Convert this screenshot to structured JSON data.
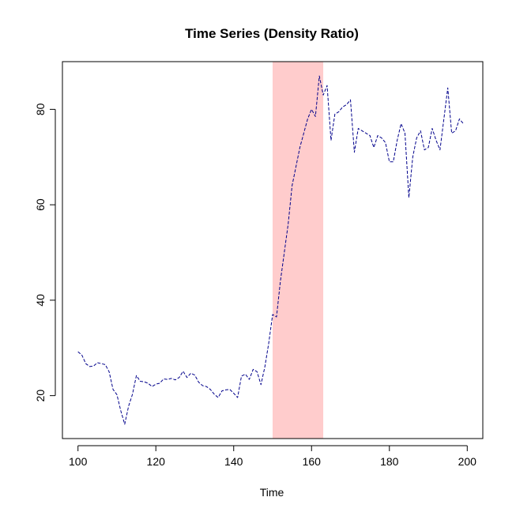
{
  "colors": {
    "background": "#ffffff",
    "series": "#00008b",
    "highlight": "#ffcccc",
    "axis": "#000000"
  },
  "chart_data": {
    "type": "line",
    "title": "Time Series (Density Ratio)",
    "xlabel": "Time",
    "ylabel": "",
    "xlim": [
      96,
      204
    ],
    "ylim": [
      11,
      90
    ],
    "x_ticks": [
      100,
      120,
      140,
      160,
      180,
      200
    ],
    "y_ticks": [
      20,
      40,
      60,
      80
    ],
    "line_style": "dashed",
    "highlight_region": {
      "x_start": 150,
      "x_end": 163
    },
    "x": [
      100,
      101,
      102,
      103,
      104,
      105,
      106,
      107,
      108,
      109,
      110,
      111,
      112,
      113,
      114,
      115,
      116,
      117,
      118,
      119,
      120,
      121,
      122,
      123,
      124,
      125,
      126,
      127,
      128,
      129,
      130,
      131,
      132,
      133,
      134,
      135,
      136,
      137,
      138,
      139,
      140,
      141,
      142,
      143,
      144,
      145,
      146,
      147,
      148,
      149,
      150,
      151,
      152,
      153,
      154,
      155,
      156,
      157,
      158,
      159,
      160,
      161,
      162,
      163,
      164,
      165,
      166,
      167,
      168,
      169,
      170,
      171,
      172,
      173,
      174,
      175,
      176,
      177,
      178,
      179,
      180,
      181,
      182,
      183,
      184,
      185,
      186,
      187,
      188,
      189,
      190,
      191,
      192,
      193,
      194,
      195,
      196,
      197,
      198,
      199,
      200
    ],
    "values": [
      29.2,
      28.5,
      26.7,
      26.1,
      26.2,
      26.9,
      26.7,
      26.5,
      25.0,
      21.3,
      20.2,
      16.8,
      14.0,
      17.8,
      20.3,
      24.2,
      23.0,
      22.9,
      22.6,
      21.9,
      22.4,
      22.6,
      23.5,
      23.4,
      23.6,
      23.3,
      23.8,
      25.1,
      23.8,
      24.7,
      24.3,
      22.8,
      22.1,
      21.9,
      21.3,
      20.3,
      19.6,
      21.0,
      21.2,
      21.3,
      20.5,
      19.6,
      24.1,
      24.5,
      23.4,
      25.5,
      25.0,
      22.3,
      26.0,
      31.0,
      37.0,
      36.5,
      44.0,
      50.0,
      56.0,
      64.0,
      68.0,
      72.0,
      75.0,
      78.0,
      80.0,
      78.5,
      87.0,
      83.0,
      85.0,
      73.5,
      79.0,
      79.5,
      80.5,
      81.0,
      82.0,
      71.0,
      76.0,
      75.5,
      75.0,
      74.5,
      72.0,
      74.5,
      74.0,
      73.0,
      69.0,
      69.0,
      73.5,
      77.0,
      75.0,
      61.5,
      70.0,
      74.0,
      75.5,
      71.5,
      72.0,
      76.0,
      73.5,
      71.5,
      78.0,
      84.5,
      75.0,
      75.5,
      78.0,
      77.0,
      null
    ]
  }
}
